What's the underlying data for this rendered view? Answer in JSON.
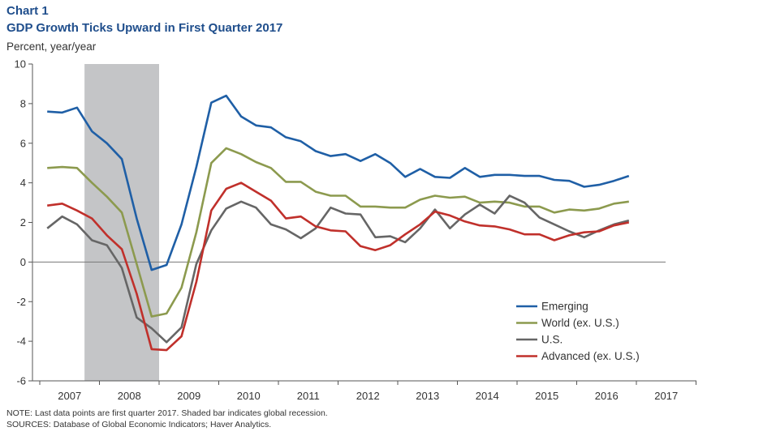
{
  "header": {
    "chart_label": "Chart 1",
    "title": "GDP Growth Ticks Upward in First Quarter 2017",
    "ylabel": "Percent, year/year"
  },
  "footer": {
    "note": "NOTE: Last data points are first quarter 2017. Shaded bar indicates global recession.",
    "sources": "SOURCES: Database of Global Economic Indicators; Haver Analytics."
  },
  "chart_data": {
    "type": "line",
    "title": "GDP Growth Ticks Upward in First Quarter 2017",
    "ylabel": "Percent, year/year",
    "xlabel": "",
    "ylim": [
      -6,
      10
    ],
    "yticks": [
      "10",
      "8",
      "6",
      "4",
      "2",
      "0",
      "-2",
      "-4",
      "-6"
    ],
    "ytick_values": [
      10,
      8,
      6,
      4,
      2,
      0,
      -2,
      -4,
      -6
    ],
    "xticks": [
      "2007",
      "2008",
      "2009",
      "2010",
      "2011",
      "2012",
      "2013",
      "2014",
      "2015",
      "2016",
      "2017"
    ],
    "x_start_year": 2007,
    "quarters_per_year": 4,
    "recession": {
      "start": [
        2007,
        4
      ],
      "end": [
        2008,
        4
      ]
    },
    "legend_position": "right",
    "series": [
      {
        "name": "Emerging",
        "color": "#1f5fa6",
        "values": [
          7.6,
          7.55,
          7.8,
          6.6,
          6.0,
          5.2,
          2.2,
          -0.4,
          -0.15,
          1.9,
          4.8,
          8.05,
          8.4,
          7.35,
          6.9,
          6.8,
          6.3,
          6.1,
          5.6,
          5.35,
          5.45,
          5.1,
          5.45,
          5.0,
          4.3,
          4.7,
          4.3,
          4.25,
          4.75,
          4.3,
          4.4,
          4.4,
          4.35,
          4.35,
          4.15,
          4.1,
          3.8,
          3.9,
          4.1,
          4.35
        ]
      },
      {
        "name": "World (ex. U.S.)",
        "color": "#8c9a4e",
        "values": [
          4.75,
          4.8,
          4.75,
          4.0,
          3.3,
          2.5,
          -0.1,
          -2.75,
          -2.6,
          -1.3,
          1.5,
          5.0,
          5.75,
          5.45,
          5.05,
          4.75,
          4.05,
          4.05,
          3.55,
          3.35,
          3.35,
          2.8,
          2.8,
          2.75,
          2.75,
          3.15,
          3.35,
          3.25,
          3.3,
          3.0,
          3.05,
          3.0,
          2.8,
          2.8,
          2.5,
          2.65,
          2.6,
          2.7,
          2.95,
          3.05
        ]
      },
      {
        "name": "U.S.",
        "color": "#666666",
        "values": [
          1.7,
          2.3,
          1.9,
          1.1,
          0.85,
          -0.3,
          -2.8,
          -3.35,
          -4.05,
          -3.3,
          -0.1,
          1.6,
          2.7,
          3.05,
          2.75,
          1.9,
          1.65,
          1.2,
          1.7,
          2.75,
          2.45,
          2.4,
          1.25,
          1.3,
          1.0,
          1.7,
          2.65,
          1.7,
          2.4,
          2.9,
          2.45,
          3.35,
          3.0,
          2.25,
          1.9,
          1.55,
          1.25,
          1.6,
          1.9,
          2.1
        ]
      },
      {
        "name": "Advanced (ex. U.S.)",
        "color": "#c0302b",
        "values": [
          2.85,
          2.95,
          2.6,
          2.2,
          1.35,
          0.65,
          -1.6,
          -4.4,
          -4.45,
          -3.75,
          -1.0,
          2.6,
          3.7,
          4.0,
          3.55,
          3.1,
          2.2,
          2.3,
          1.8,
          1.6,
          1.55,
          0.8,
          0.6,
          0.85,
          1.4,
          1.9,
          2.55,
          2.35,
          2.05,
          1.85,
          1.8,
          1.65,
          1.4,
          1.4,
          1.1,
          1.35,
          1.5,
          1.55,
          1.85,
          2.0
        ]
      }
    ]
  }
}
